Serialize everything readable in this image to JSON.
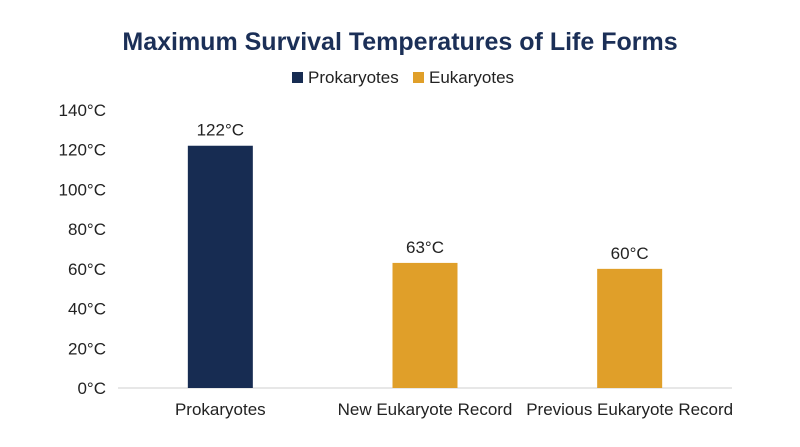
{
  "chart_data": {
    "type": "bar",
    "title": "Maximum Survival Temperatures of Life Forms",
    "categories": [
      "Prokaryotes",
      "New Eukaryote Record",
      "Previous Eukaryote Record"
    ],
    "values": [
      122,
      63,
      60
    ],
    "data_labels": [
      "122°C",
      "63°C",
      "60°C"
    ],
    "value_unit": "°C",
    "legend": [
      {
        "name": "Prokaryotes",
        "color": "#172c52"
      },
      {
        "name": "Eukaryotes",
        "color": "#e09f29"
      }
    ],
    "legend_position": "top-center",
    "bar_groups": [
      "Prokaryotes",
      "Eukaryotes",
      "Eukaryotes"
    ],
    "ylim": [
      0,
      140
    ],
    "yticks": [
      0,
      20,
      40,
      60,
      80,
      100,
      120,
      140
    ],
    "ytick_labels": [
      "0°C",
      "20°C",
      "40°C",
      "60°C",
      "80°C",
      "100°C",
      "120°C",
      "140°C"
    ],
    "grid": false
  }
}
